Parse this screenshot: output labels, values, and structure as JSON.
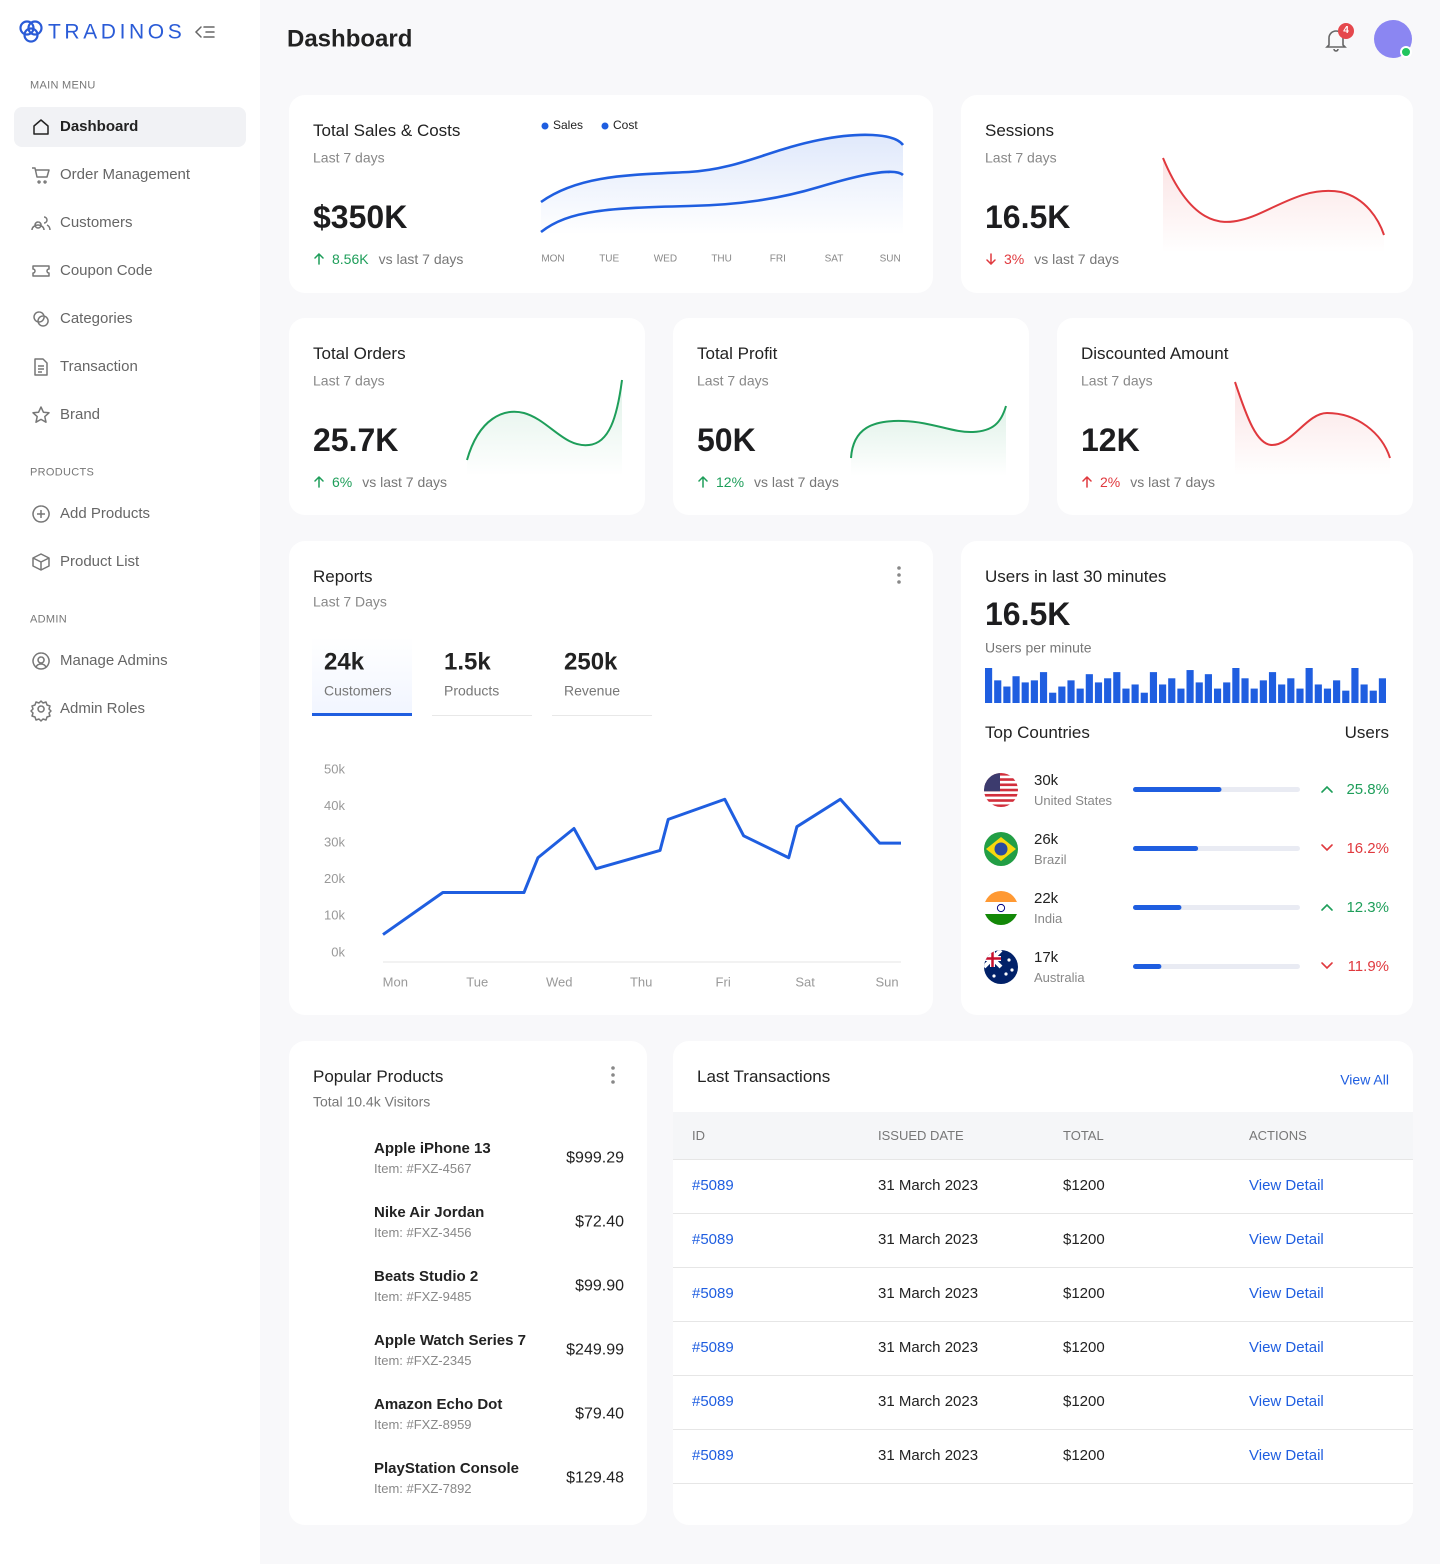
{
  "sidebar": {
    "brand": "TRADINOS",
    "active": {
      "section": 0,
      "item": 0
    },
    "sections": [
      {
        "title": "MAIN MENU",
        "items": [
          "Dashboard",
          "Order Management",
          "Customers",
          "Coupon Code",
          "Categories",
          "Transaction",
          "Brand"
        ]
      },
      {
        "title": "PRODUCTS",
        "items": [
          "Add Products",
          "Product List"
        ]
      },
      {
        "title": "ADMIN",
        "items": [
          "Manage Admins",
          "Admin Roles"
        ]
      }
    ]
  },
  "header": {
    "title": "Dashboard",
    "notifications": 4
  },
  "sales_costs": {
    "title": "Total Sales & Costs",
    "subtitle": "Last 7 days",
    "value": "$350K",
    "change": "8.56K",
    "compare": "vs last 7 days",
    "trend": "up",
    "color": "#1e9e5a",
    "chart": {
      "type": "line",
      "categories": [
        "MON",
        "TUE",
        "WED",
        "THU",
        "FRI",
        "SAT",
        "SUN"
      ],
      "series": [
        {
          "name": "Sales",
          "color": "#1f5ee0"
        },
        {
          "name": "Cost",
          "color": "#1f5ee0"
        }
      ]
    }
  },
  "stats": [
    {
      "title": "Sessions",
      "subtitle": "Last 7 days",
      "value": "16.5K",
      "change": "3%",
      "compare": "vs last 7 days",
      "trend": "down",
      "color": "#e0393e"
    },
    {
      "title": "Total Orders",
      "subtitle": "Last 7 days",
      "value": "25.7K",
      "change": "6%",
      "compare": "vs last 7 days",
      "trend": "up",
      "color": "#1e9e5a"
    },
    {
      "title": "Total Profit",
      "subtitle": "Last 7 days",
      "value": "50K",
      "change": "12%",
      "compare": "vs last 7 days",
      "trend": "up",
      "color": "#1e9e5a"
    },
    {
      "title": "Discounted Amount",
      "subtitle": "Last 7 days",
      "value": "12K",
      "change": "2%",
      "compare": "vs last 7 days",
      "trend": "up",
      "color": "#e0393e"
    }
  ],
  "reports": {
    "title": "Reports",
    "subtitle": "Last 7 Days",
    "active_tab": 0,
    "tabs": [
      {
        "value": "24k",
        "label": "Customers"
      },
      {
        "value": "1.5k",
        "label": "Products"
      },
      {
        "value": "250k",
        "label": "Revenue"
      }
    ],
    "chart": {
      "type": "line",
      "color": "#1f5ee0",
      "x": [
        -0.15,
        0.58,
        1.57,
        1.74,
        2.18,
        2.45,
        3.23,
        3.33,
        4.02,
        4.25,
        4.8,
        4.9,
        5.43,
        5.91,
        6.17
      ],
      "values": [
        5000,
        16500,
        16500,
        26000,
        34000,
        23000,
        28000,
        36500,
        42000,
        32000,
        26000,
        34500,
        42000,
        30000,
        30000
      ],
      "xlim": [
        -0.15,
        6.17
      ],
      "xticks": [
        {
          "value": 0,
          "label": "Mon"
        },
        {
          "value": 1,
          "label": "Tue"
        },
        {
          "value": 2,
          "label": "Wed"
        },
        {
          "value": 3,
          "label": "Thu"
        },
        {
          "value": 4,
          "label": "Fri"
        },
        {
          "value": 5,
          "label": "Sat"
        },
        {
          "value": 6,
          "label": "Sun"
        }
      ],
      "ylim": [
        -2500,
        50000
      ],
      "yticks": [
        {
          "value": 0,
          "label": "0k"
        },
        {
          "value": 10000,
          "label": "10k"
        },
        {
          "value": 20000,
          "label": "20k"
        },
        {
          "value": 30000,
          "label": "30k"
        },
        {
          "value": 40000,
          "label": "40k"
        },
        {
          "value": 50000,
          "label": "50k"
        }
      ]
    }
  },
  "users": {
    "title": "Users in last 30 minutes",
    "value": "16.5K",
    "subtitle": "Users per minute",
    "bars": {
      "type": "bar",
      "color": "#1f5ee0",
      "values": [
        34,
        22,
        16,
        26,
        20,
        22,
        30,
        10,
        16,
        22,
        14,
        28,
        20,
        24,
        30,
        14,
        18,
        10,
        30,
        18,
        24,
        14,
        32,
        20,
        28,
        14,
        20,
        34,
        24,
        14,
        22,
        30,
        18,
        24,
        14,
        34,
        18,
        14,
        22,
        12,
        34,
        18,
        12,
        24
      ]
    },
    "countries_title": "Top Countries",
    "users_title": "Users",
    "countries": [
      {
        "users": "30k",
        "name": "United States",
        "share": 53,
        "change": "25.8%",
        "trend": "up"
      },
      {
        "users": "26k",
        "name": "Brazil",
        "share": 39,
        "change": "16.2%",
        "trend": "down"
      },
      {
        "users": "22k",
        "name": "India",
        "share": 29,
        "change": "12.3%",
        "trend": "up"
      },
      {
        "users": "17k",
        "name": "Australia",
        "share": 17,
        "change": "11.9%",
        "trend": "down"
      }
    ]
  },
  "popular": {
    "title": "Popular Products",
    "subtitle": "Total 10.4k Visitors",
    "products": [
      {
        "name": "Apple iPhone 13",
        "item": "Item: #FXZ-4567",
        "price": "$999.29"
      },
      {
        "name": "Nike Air Jordan",
        "item": "Item: #FXZ-3456",
        "price": "$72.40"
      },
      {
        "name": "Beats Studio 2",
        "item": "Item: #FXZ-9485",
        "price": "$99.90"
      },
      {
        "name": "Apple Watch Series 7",
        "item": "Item: #FXZ-2345",
        "price": "$249.99"
      },
      {
        "name": "Amazon Echo Dot",
        "item": "Item: #FXZ-8959",
        "price": "$79.40"
      },
      {
        "name": "PlayStation Console",
        "item": "Item: #FXZ-7892",
        "price": "$129.48"
      }
    ]
  },
  "transactions": {
    "title": "Last Transactions",
    "link": "View All",
    "columns": [
      "ID",
      "ISSUED DATE",
      "TOTAL",
      "ACTIONS"
    ],
    "rows": [
      [
        "#5089",
        "31 March 2023",
        "$1200",
        "View Detail"
      ],
      [
        "#5089",
        "31 March 2023",
        "$1200",
        "View Detail"
      ],
      [
        "#5089",
        "31 March 2023",
        "$1200",
        "View Detail"
      ],
      [
        "#5089",
        "31 March 2023",
        "$1200",
        "View Detail"
      ],
      [
        "#5089",
        "31 March 2023",
        "$1200",
        "View Detail"
      ],
      [
        "#5089",
        "31 March 2023",
        "$1200",
        "View Detail"
      ]
    ]
  }
}
